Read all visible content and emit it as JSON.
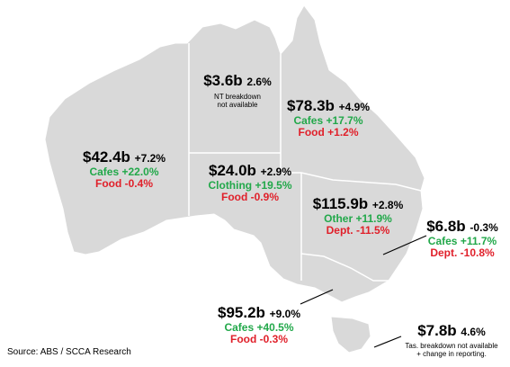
{
  "colors": {
    "land": "#d9d9d9",
    "border": "#ffffff",
    "positive": "#22a84a",
    "negative": "#e0202a",
    "text": "#000000"
  },
  "source": "Source: ABS / SCCA Research",
  "regions": {
    "wa": {
      "total": "$42.4b",
      "change": "+7.2%",
      "lines": [
        {
          "text": "Cafes +22.0%",
          "sign": "positive"
        },
        {
          "text": "Food -0.4%",
          "sign": "negative"
        }
      ]
    },
    "nt": {
      "total": "$3.6b",
      "change": "2.6%",
      "note": [
        "NT breakdown",
        "not available"
      ]
    },
    "qld": {
      "total": "$78.3b",
      "change": "+4.9%",
      "lines": [
        {
          "text": "Cafes +17.7%",
          "sign": "positive"
        },
        {
          "text": "Food +1.2%",
          "sign": "negative"
        }
      ]
    },
    "sa": {
      "total": "$24.0b",
      "change": "+2.9%",
      "lines": [
        {
          "text": "Clothing +19.5%",
          "sign": "positive"
        },
        {
          "text": "Food -0.9%",
          "sign": "negative"
        }
      ]
    },
    "nsw": {
      "total": "$115.9b",
      "change": "+2.8%",
      "lines": [
        {
          "text": "Other +11.9%",
          "sign": "positive"
        },
        {
          "text": "Dept. -11.5%",
          "sign": "negative"
        }
      ]
    },
    "act": {
      "total": "$6.8b",
      "change": "-0.3%",
      "lines": [
        {
          "text": "Cafes +11.7%",
          "sign": "positive"
        },
        {
          "text": "Dept. -10.8%",
          "sign": "negative"
        }
      ]
    },
    "vic": {
      "total": "$95.2b",
      "change": "+9.0%",
      "lines": [
        {
          "text": "Cafes +40.5%",
          "sign": "positive"
        },
        {
          "text": "Food -0.3%",
          "sign": "negative"
        }
      ]
    },
    "tas": {
      "total": "$7.8b",
      "change": "4.6%",
      "note": [
        "Tas. breakdown not available",
        "+ change in reporting."
      ]
    }
  }
}
